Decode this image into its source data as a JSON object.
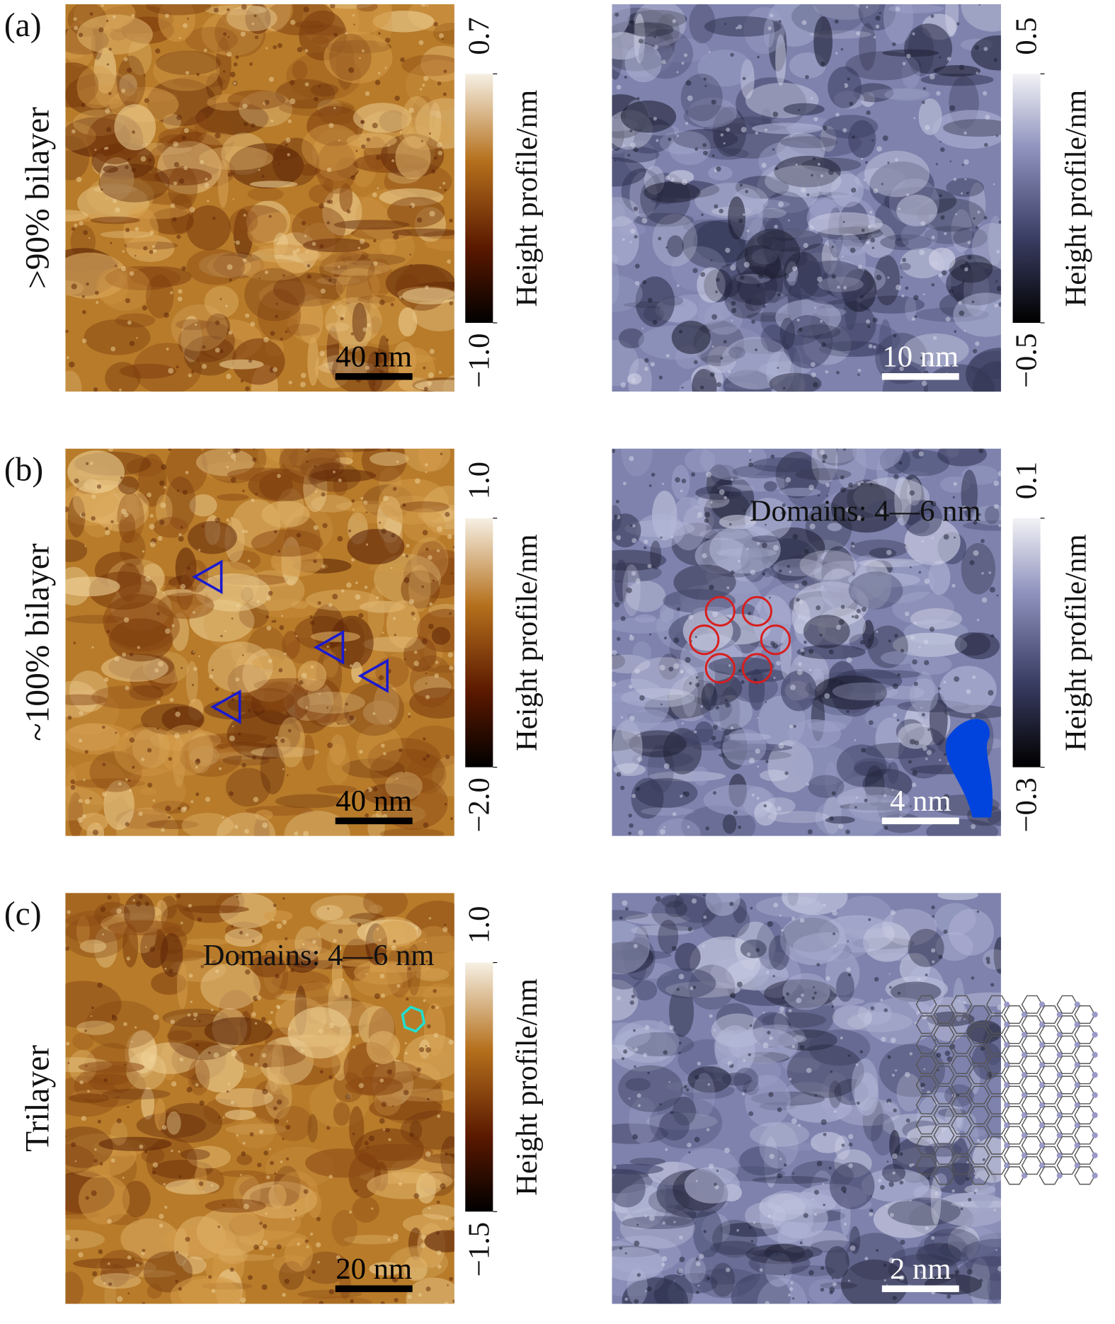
{
  "rows": [
    {
      "label": "(a)",
      "title": ">90% bilayer",
      "panels": [
        {
          "scale_bar": "40 nm",
          "colorbar": {
            "title": "Height profile/nm",
            "ticks": [
              {
                "value": -1,
                "label": "−1.0"
              },
              0.7
            ]
          }
        },
        {
          "scale_bar": "10 nm",
          "colorbar": {
            "title": "Height profile/nm",
            "ticks": [
              {
                "value": -0.5,
                "label": "−0.5"
              },
              0.5
            ]
          }
        }
      ]
    },
    {
      "label": "(b)",
      "title": "~100% bilayer",
      "panels": [
        {
          "scale_bar": "40 nm",
          "colorbar": {
            "title": "Height profile/nm",
            "ticks": [
              {
                "value": -2,
                "label": "−2.0"
              },
              {
                "value": 1,
                "label": "1.0"
              }
            ]
          }
        },
        {
          "scale_bar": "4 nm",
          "annotation": "Domains: 4—6 nm",
          "colorbar": {
            "title": "Height profile/nm",
            "ticks": [
              {
                "value": -0.3,
                "label": "−0.3"
              },
              0.1
            ]
          }
        }
      ]
    },
    {
      "label": "(c)",
      "title": "Trilayer",
      "panels": [
        {
          "scale_bar": "20 nm",
          "annotation": "Domains: 4—6 nm",
          "colorbar": {
            "title": "Height profile/nm",
            "ticks": [
              {
                "value": -1.5,
                "label": "−1.5"
              },
              {
                "value": 1,
                "label": "1.0"
              }
            ]
          }
        },
        {
          "scale_bar": "2 nm"
        }
      ]
    }
  ]
}
